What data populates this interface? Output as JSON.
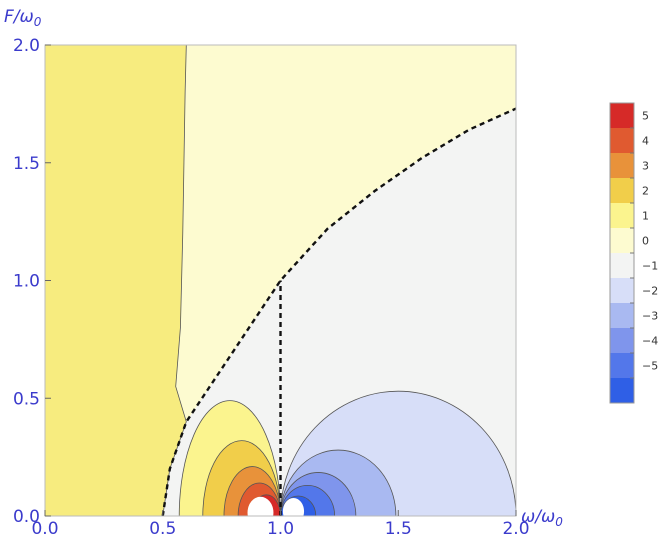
{
  "chart_data": {
    "type": "heatmap",
    "title": "",
    "xlabel": {
      "main": "ω/ω",
      "sub": "0"
    },
    "ylabel": {
      "main": "F/ω",
      "sub": "0"
    },
    "xlim": [
      0,
      2
    ],
    "ylim": [
      0,
      2
    ],
    "xticks": [
      "0.0",
      "0.5",
      "1.0",
      "1.5",
      "2.0"
    ],
    "yticks": [
      "0.0",
      "0.5",
      "1.0",
      "1.5",
      "2.0"
    ],
    "grid": false,
    "legend": {
      "placement": "right",
      "labels": [
        "5",
        "4",
        "3",
        "2",
        "1",
        "0",
        "−1",
        "−2",
        "−3",
        "−4",
        "−5"
      ],
      "colors": [
        "#d62a28",
        "#e05a30",
        "#e8923a",
        "#f1ce4a",
        "#fbf48e",
        "#fdfbd0",
        "#f3f4f3",
        "#d7def8",
        "#a9b9f1",
        "#7f95ec",
        "#5377ea",
        "#2f5fe6"
      ]
    },
    "regions": {
      "outer_left_color": "#f7ec7f",
      "outer_left_boundary_x": [
        0.555,
        0.575,
        0.585,
        0.59,
        0.595,
        0.6
      ],
      "outer_left_boundary_y": [
        0.55,
        0.8,
        1.2,
        1.5,
        1.8,
        2.0
      ],
      "upper_middle_color": "#fdfbd0",
      "lower_right_color": "#f3f4f3"
    },
    "dashed_curve": {
      "x": [
        0.5,
        0.53,
        0.6,
        0.7,
        0.8,
        0.9,
        1.0,
        1.2,
        1.4,
        1.6,
        1.8,
        2.0
      ],
      "y": [
        0.0,
        0.2,
        0.4,
        0.55,
        0.7,
        0.85,
        1.0,
        1.22,
        1.38,
        1.52,
        1.64,
        1.73
      ]
    },
    "dashed_vertical": {
      "x": 1.0,
      "y": [
        0.0,
        1.0
      ]
    },
    "left_lobes": [
      {
        "level": 1,
        "color": "#fbf48e",
        "rx": 0.215,
        "ry": 0.49
      },
      {
        "level": 2,
        "color": "#f1ce4a",
        "rx": 0.165,
        "ry": 0.32
      },
      {
        "level": 3,
        "color": "#e8923a",
        "rx": 0.12,
        "ry": 0.21
      },
      {
        "level": 4,
        "color": "#e05a30",
        "rx": 0.09,
        "ry": 0.14
      },
      {
        "level": 5,
        "color": "#d62a28",
        "rx": 0.06,
        "ry": 0.09
      }
    ],
    "right_lobes": [
      {
        "level": -1,
        "color": "#d7def8",
        "rx": 0.5,
        "ry": 0.53
      },
      {
        "level": -2,
        "color": "#a9b9f1",
        "rx": 0.245,
        "ry": 0.28
      },
      {
        "level": -3,
        "color": "#7f95ec",
        "rx": 0.16,
        "ry": 0.185
      },
      {
        "level": -4,
        "color": "#5377ea",
        "rx": 0.115,
        "ry": 0.13
      },
      {
        "level": -5,
        "color": "#2f5fe6",
        "rx": 0.075,
        "ry": 0.085
      }
    ]
  }
}
